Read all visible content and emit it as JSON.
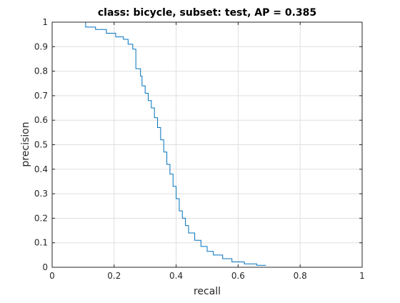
{
  "chart_data": {
    "type": "line",
    "title": "class: bicycle, subset: test, AP = 0.385",
    "xlabel": "recall",
    "ylabel": "precision",
    "xlim": [
      0,
      1
    ],
    "ylim": [
      0,
      1
    ],
    "grid": true,
    "x_ticks": [
      0,
      0.2,
      0.4,
      0.6,
      0.8,
      1
    ],
    "x_tick_labels": [
      "0",
      "0.2",
      "0.4",
      "0.6",
      "0.8",
      "1"
    ],
    "y_ticks": [
      0,
      0.1,
      0.2,
      0.3,
      0.4,
      0.5,
      0.6,
      0.7,
      0.8,
      0.9,
      1
    ],
    "y_tick_labels": [
      "0",
      "0.1",
      "0.2",
      "0.3",
      "0.4",
      "0.5",
      "0.6",
      "0.7",
      "0.8",
      "0.9",
      "1"
    ],
    "series": [
      {
        "color": "#0072bd",
        "x": [
          0.0,
          0.108,
          0.108,
          0.14,
          0.14,
          0.175,
          0.175,
          0.205,
          0.205,
          0.23,
          0.23,
          0.245,
          0.245,
          0.26,
          0.26,
          0.27,
          0.27,
          0.285,
          0.285,
          0.29,
          0.29,
          0.3,
          0.3,
          0.31,
          0.31,
          0.32,
          0.32,
          0.33,
          0.33,
          0.34,
          0.34,
          0.35,
          0.35,
          0.36,
          0.36,
          0.37,
          0.37,
          0.38,
          0.38,
          0.39,
          0.39,
          0.4,
          0.4,
          0.41,
          0.41,
          0.42,
          0.42,
          0.43,
          0.43,
          0.44,
          0.44,
          0.46,
          0.46,
          0.48,
          0.48,
          0.5,
          0.5,
          0.52,
          0.52,
          0.55,
          0.55,
          0.58,
          0.58,
          0.62,
          0.62,
          0.66,
          0.66,
          0.69
        ],
        "y": [
          1.0,
          1.0,
          0.98,
          0.98,
          0.97,
          0.97,
          0.955,
          0.955,
          0.94,
          0.94,
          0.93,
          0.93,
          0.91,
          0.91,
          0.89,
          0.89,
          0.81,
          0.81,
          0.78,
          0.78,
          0.74,
          0.74,
          0.71,
          0.71,
          0.68,
          0.68,
          0.65,
          0.65,
          0.61,
          0.61,
          0.57,
          0.57,
          0.52,
          0.52,
          0.47,
          0.47,
          0.42,
          0.42,
          0.38,
          0.38,
          0.33,
          0.33,
          0.28,
          0.28,
          0.23,
          0.23,
          0.2,
          0.2,
          0.17,
          0.17,
          0.14,
          0.14,
          0.11,
          0.11,
          0.085,
          0.085,
          0.065,
          0.065,
          0.05,
          0.05,
          0.035,
          0.035,
          0.022,
          0.022,
          0.014,
          0.014,
          0.008,
          0.008
        ]
      }
    ]
  }
}
